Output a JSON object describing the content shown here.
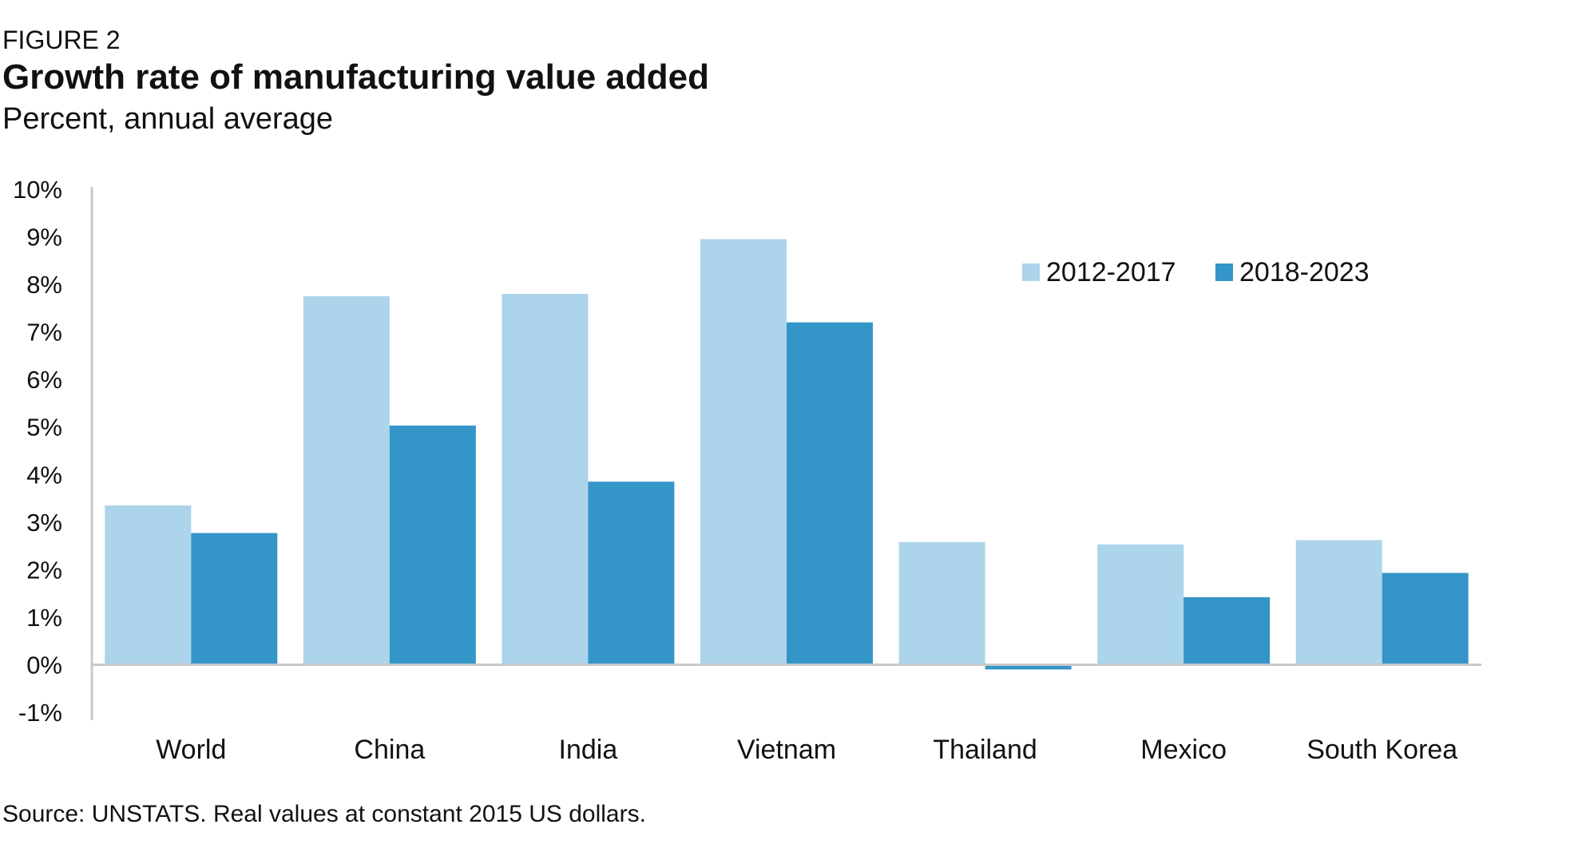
{
  "header": {
    "figure_label": "FIGURE 2",
    "title": "Growth rate of manufacturing value added",
    "subtitle": "Percent, annual average"
  },
  "chart_data": {
    "type": "bar",
    "title": "Growth rate of manufacturing value added",
    "subtitle": "Percent, annual average",
    "xlabel": "",
    "ylabel": "",
    "categories": [
      "World",
      "China",
      "India",
      "Vietnam",
      "Thailand",
      "Mexico",
      "South Korea"
    ],
    "series": [
      {
        "name": "2012-2017",
        "color": "#acd4ea",
        "values": [
          3.35,
          7.75,
          7.8,
          8.95,
          2.58,
          2.53,
          2.62
        ]
      },
      {
        "name": "2018-2023",
        "color": "#3495c8",
        "values": [
          2.77,
          5.03,
          3.85,
          7.2,
          -0.1,
          1.42,
          1.93
        ]
      }
    ],
    "ylim": [
      -1,
      10
    ],
    "yticks": [
      "-1%",
      "0%",
      "1%",
      "2%",
      "3%",
      "4%",
      "5%",
      "6%",
      "7%",
      "8%",
      "9%",
      "10%"
    ],
    "grid": false,
    "legend_position": "top-right"
  },
  "footer": {
    "source": "Source: UNSTATS. Real values at constant 2015 US dollars."
  }
}
